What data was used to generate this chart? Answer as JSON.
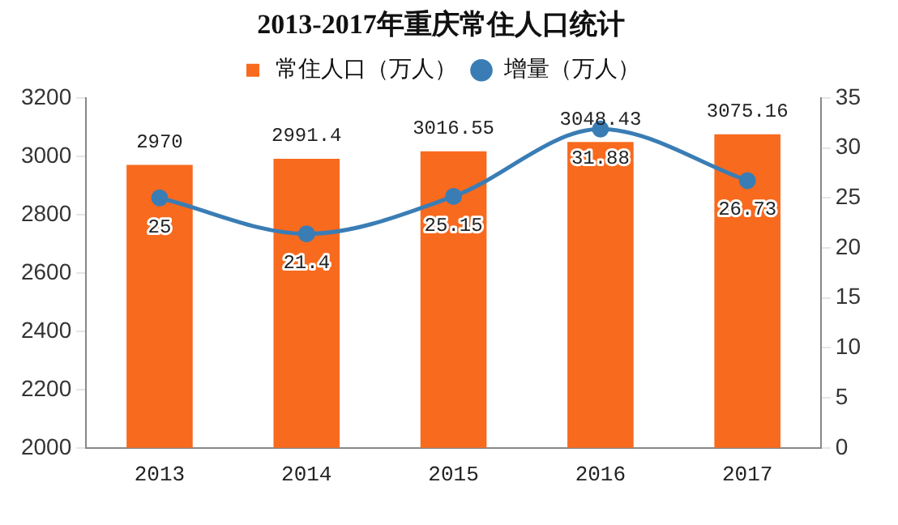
{
  "chart_data": {
    "type": "bar",
    "title": "2013-2017年重庆常住人口统计",
    "categories": [
      "2013",
      "2014",
      "2015",
      "2016",
      "2017"
    ],
    "series": [
      {
        "name": "常住人口（万人）",
        "color": "#f86a1e",
        "values": [
          2970,
          2991.4,
          3016.55,
          3048.43,
          3075.16
        ]
      },
      {
        "name": "增量（万人）",
        "type": "line",
        "axis": "y2",
        "color": "#3a7db5",
        "values": [
          25,
          21.4,
          25.15,
          31.88,
          26.73
        ]
      }
    ],
    "ylim": [
      2000,
      3200
    ],
    "yticks": [
      2000,
      2200,
      2400,
      2600,
      2800,
      3000,
      3200
    ],
    "y2lim": [
      0,
      35
    ],
    "y2ticks": [
      0,
      5,
      10,
      15,
      20,
      25,
      30,
      35
    ],
    "data_labels": true,
    "grid": false,
    "legend": "top",
    "marker": "circle"
  }
}
